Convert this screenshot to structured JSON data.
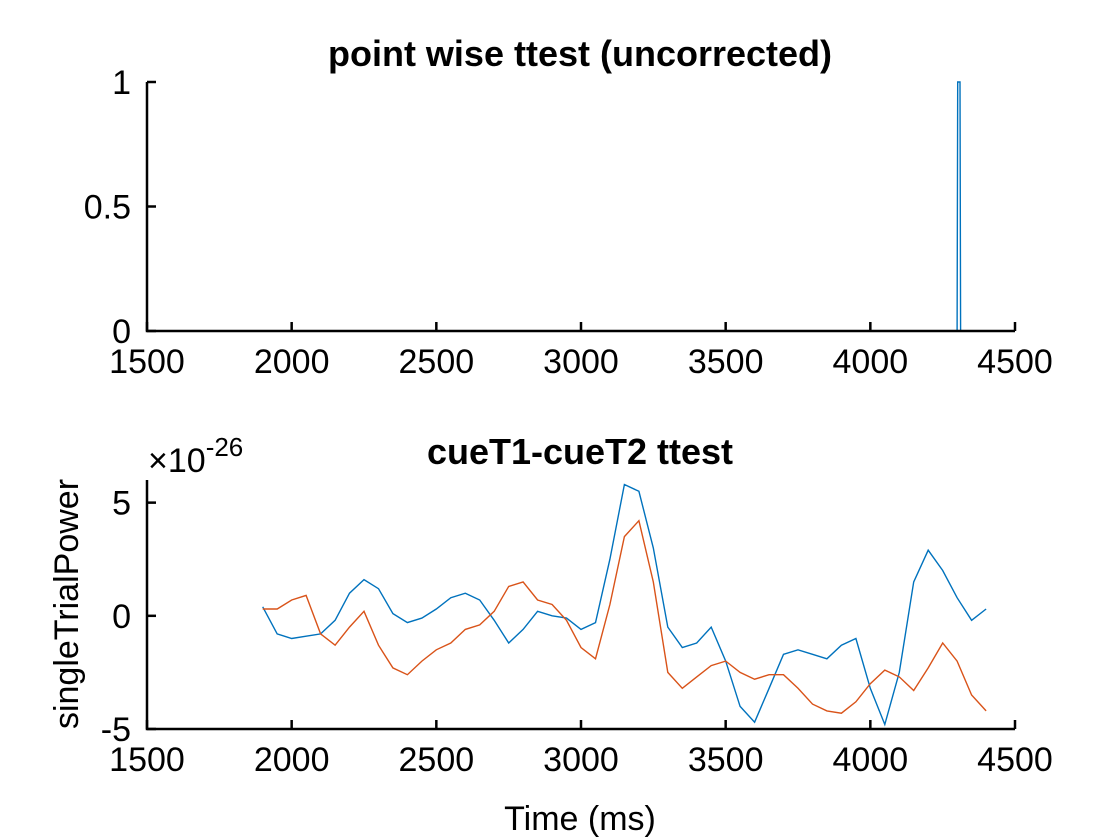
{
  "chart_data": [
    {
      "type": "line",
      "title": "point wise ttest (uncorrected)",
      "xlabel": "",
      "ylabel": "",
      "xlim": [
        1500,
        4500
      ],
      "ylim": [
        0,
        1
      ],
      "xticks": [
        "1500",
        "2000",
        "2500",
        "3000",
        "3500",
        "4000",
        "4500"
      ],
      "yticks": [
        "0",
        "0.5",
        "1"
      ],
      "grid": false,
      "series": [
        {
          "color": "#0072BD",
          "x": [
            1900,
            4300,
            4302,
            4310,
            4312,
            4400
          ],
          "y": [
            0,
            0,
            1,
            1,
            0,
            0
          ]
        }
      ]
    },
    {
      "type": "line",
      "title": "cueT1-cueT2 ttest",
      "xlabel": "Time (ms)",
      "ylabel": "singleTrialPower",
      "exponent_base": "×10",
      "exponent_power": "-26",
      "xlim": [
        1500,
        4500
      ],
      "ylim": [
        -5,
        6
      ],
      "xticks": [
        "1500",
        "2000",
        "2500",
        "3000",
        "3500",
        "4000",
        "4500"
      ],
      "yticks": [
        "-5",
        "0",
        "5"
      ],
      "grid": false,
      "series": [
        {
          "color": "#0072BD",
          "x": [
            1900,
            1950,
            2000,
            2050,
            2100,
            2150,
            2200,
            2250,
            2300,
            2350,
            2400,
            2450,
            2500,
            2550,
            2600,
            2650,
            2700,
            2750,
            2800,
            2850,
            2900,
            2950,
            3000,
            3050,
            3100,
            3150,
            3200,
            3250,
            3300,
            3350,
            3400,
            3450,
            3500,
            3550,
            3600,
            3650,
            3700,
            3750,
            3800,
            3850,
            3900,
            3950,
            4000,
            4050,
            4100,
            4150,
            4200,
            4250,
            4300,
            4350,
            4400
          ],
          "y": [
            0.4,
            -0.8,
            -1.0,
            -0.9,
            -0.8,
            -0.2,
            1.0,
            1.6,
            1.2,
            0.1,
            -0.3,
            -0.1,
            0.3,
            0.8,
            1.0,
            0.7,
            -0.2,
            -1.2,
            -0.6,
            0.2,
            0.0,
            -0.1,
            -0.6,
            -0.3,
            2.5,
            5.8,
            5.5,
            3.0,
            -0.5,
            -1.4,
            -1.2,
            -0.5,
            -2.0,
            -4.0,
            -4.7,
            -3.2,
            -1.7,
            -1.5,
            -1.7,
            -1.9,
            -1.3,
            -1.0,
            -3.2,
            -4.8,
            -2.5,
            1.5,
            2.9,
            2.0,
            0.8,
            -0.2,
            0.3
          ]
        },
        {
          "color": "#D95319",
          "x": [
            1900,
            1950,
            2000,
            2050,
            2100,
            2150,
            2200,
            2250,
            2300,
            2350,
            2400,
            2450,
            2500,
            2550,
            2600,
            2650,
            2700,
            2750,
            2800,
            2850,
            2900,
            2950,
            3000,
            3050,
            3100,
            3150,
            3200,
            3250,
            3300,
            3350,
            3400,
            3450,
            3500,
            3550,
            3600,
            3650,
            3700,
            3750,
            3800,
            3850,
            3900,
            3950,
            4000,
            4050,
            4100,
            4150,
            4200,
            4250,
            4300,
            4350,
            4400
          ],
          "y": [
            0.3,
            0.3,
            0.7,
            0.9,
            -0.8,
            -1.3,
            -0.5,
            0.2,
            -1.3,
            -2.3,
            -2.6,
            -2.0,
            -1.5,
            -1.2,
            -0.6,
            -0.4,
            0.2,
            1.3,
            1.5,
            0.7,
            0.5,
            -0.2,
            -1.4,
            -1.9,
            0.5,
            3.5,
            4.2,
            1.5,
            -2.5,
            -3.2,
            -2.7,
            -2.2,
            -2.0,
            -2.5,
            -2.8,
            -2.6,
            -2.6,
            -3.2,
            -3.9,
            -4.2,
            -4.3,
            -3.8,
            -3.0,
            -2.4,
            -2.7,
            -3.3,
            -2.3,
            -1.2,
            -2.0,
            -3.5,
            -4.2
          ]
        }
      ]
    }
  ]
}
